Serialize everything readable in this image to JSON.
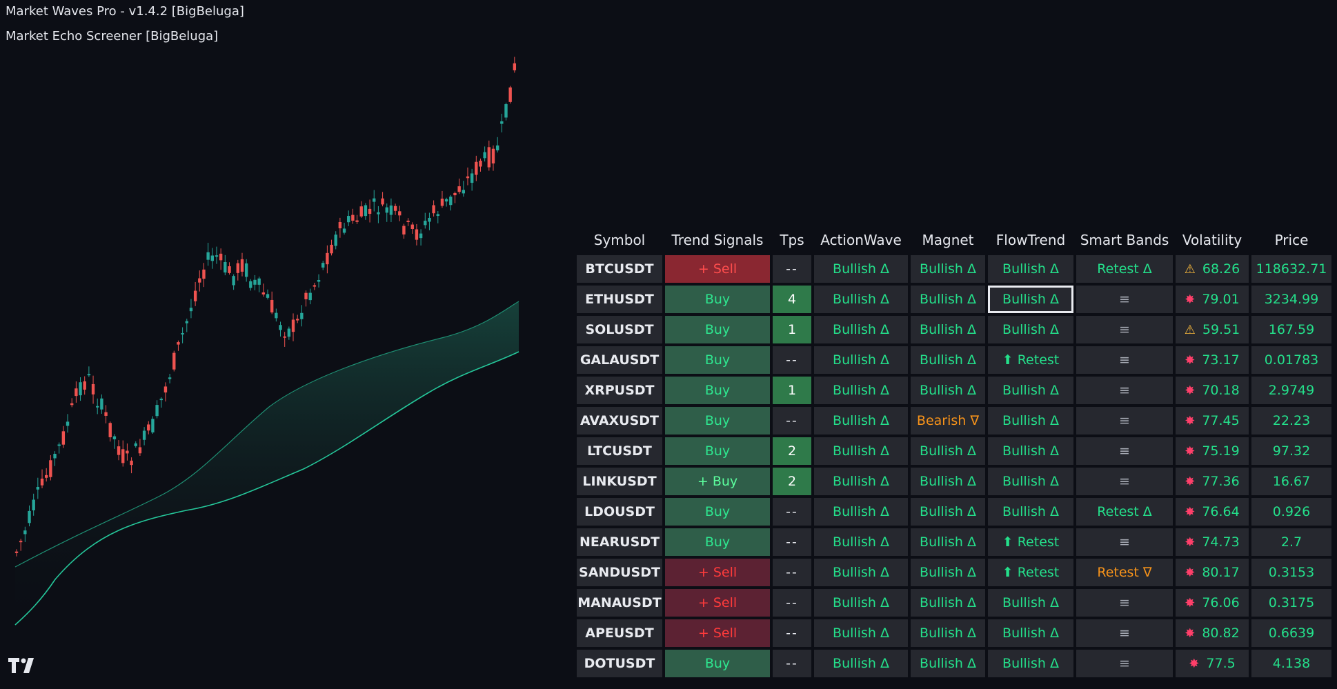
{
  "indicators": {
    "primary": "Market Waves Pro - v1.4.2 [BigBeluga]",
    "secondary": "Market Echo Screener [BigBeluga]"
  },
  "icons": {
    "logo": "tradingview-logo",
    "volatility_warning": "warning-triangle-icon",
    "volatility_high": "explosion-icon"
  },
  "colors": {
    "background": "#0c0e15",
    "bullish_text": "#24e08b",
    "bearish_text": "#f7931a",
    "buy_cell": "#2f5e49",
    "sell_cell": "#5c2233",
    "candle_up": "#26a69a",
    "candle_down": "#ef5350"
  },
  "screener": {
    "headers": [
      "Symbol",
      "Trend Signals",
      "Tps",
      "ActionWave",
      "Magnet",
      "FlowTrend",
      "Smart Bands",
      "Volatility",
      "Price"
    ],
    "rows": [
      {
        "symbol": "BTCUSDT",
        "trend": "+ Sell",
        "tps": "--",
        "actionwave": "Bullish Δ",
        "magnet": "Bullish Δ",
        "flowtrend": "Bullish Δ",
        "smartbands": "Retest Δ",
        "vol_icon": "⚠",
        "volatility": "68.26",
        "price": "118632.71"
      },
      {
        "symbol": "ETHUSDT",
        "trend": "Buy",
        "tps": "4",
        "actionwave": "Bullish Δ",
        "magnet": "Bullish Δ",
        "flowtrend": "Bullish Δ",
        "smartbands": "≡",
        "vol_icon": "✸",
        "volatility": "79.01",
        "price": "3234.99"
      },
      {
        "symbol": "SOLUSDT",
        "trend": "Buy",
        "tps": "1",
        "actionwave": "Bullish Δ",
        "magnet": "Bullish Δ",
        "flowtrend": "Bullish Δ",
        "smartbands": "≡",
        "vol_icon": "⚠",
        "volatility": "59.51",
        "price": "167.59"
      },
      {
        "symbol": "GALAUSDT",
        "trend": "Buy",
        "tps": "--",
        "actionwave": "Bullish Δ",
        "magnet": "Bullish Δ",
        "flowtrend": "⬆ Retest",
        "smartbands": "≡",
        "vol_icon": "✸",
        "volatility": "73.17",
        "price": "0.01783"
      },
      {
        "symbol": "XRPUSDT",
        "trend": "Buy",
        "tps": "1",
        "actionwave": "Bullish Δ",
        "magnet": "Bullish Δ",
        "flowtrend": "Bullish Δ",
        "smartbands": "≡",
        "vol_icon": "✸",
        "volatility": "70.18",
        "price": "2.9749"
      },
      {
        "symbol": "AVAXUSDT",
        "trend": "Buy",
        "tps": "--",
        "actionwave": "Bullish Δ",
        "magnet": "Bearish ∇",
        "flowtrend": "Bullish Δ",
        "smartbands": "≡",
        "vol_icon": "✸",
        "volatility": "77.45",
        "price": "22.23"
      },
      {
        "symbol": "LTCUSDT",
        "trend": "Buy",
        "tps": "2",
        "actionwave": "Bullish Δ",
        "magnet": "Bullish Δ",
        "flowtrend": "Bullish Δ",
        "smartbands": "≡",
        "vol_icon": "✸",
        "volatility": "75.19",
        "price": "97.32"
      },
      {
        "symbol": "LINKUSDT",
        "trend": "+ Buy",
        "tps": "2",
        "actionwave": "Bullish Δ",
        "magnet": "Bullish Δ",
        "flowtrend": "Bullish Δ",
        "smartbands": "≡",
        "vol_icon": "✸",
        "volatility": "77.36",
        "price": "16.67"
      },
      {
        "symbol": "LDOUSDT",
        "trend": "Buy",
        "tps": "--",
        "actionwave": "Bullish Δ",
        "magnet": "Bullish Δ",
        "flowtrend": "Bullish Δ",
        "smartbands": "Retest Δ",
        "vol_icon": "✸",
        "volatility": "76.64",
        "price": "0.926"
      },
      {
        "symbol": "NEARUSDT",
        "trend": "Buy",
        "tps": "--",
        "actionwave": "Bullish Δ",
        "magnet": "Bullish Δ",
        "flowtrend": "⬆ Retest",
        "smartbands": "≡",
        "vol_icon": "✸",
        "volatility": "74.73",
        "price": "2.7"
      },
      {
        "symbol": "SANDUSDT",
        "trend": "+ Sell",
        "tps": "--",
        "actionwave": "Bullish Δ",
        "magnet": "Bullish Δ",
        "flowtrend": "⬆ Retest",
        "smartbands": "Retest ∇",
        "vol_icon": "✸",
        "volatility": "80.17",
        "price": "0.3153"
      },
      {
        "symbol": "MANAUSDT",
        "trend": "+ Sell",
        "tps": "--",
        "actionwave": "Bullish Δ",
        "magnet": "Bullish Δ",
        "flowtrend": "Bullish Δ",
        "smartbands": "≡",
        "vol_icon": "✸",
        "volatility": "76.06",
        "price": "0.3175"
      },
      {
        "symbol": "APEUSDT",
        "trend": "+ Sell",
        "tps": "--",
        "actionwave": "Bullish Δ",
        "magnet": "Bullish Δ",
        "flowtrend": "Bullish Δ",
        "smartbands": "≡",
        "vol_icon": "✸",
        "volatility": "80.82",
        "price": "0.6639"
      },
      {
        "symbol": "DOTUSDT",
        "trend": "Buy",
        "tps": "--",
        "actionwave": "Bullish Δ",
        "magnet": "Bullish Δ",
        "flowtrend": "Bullish Δ",
        "smartbands": "≡",
        "vol_icon": "✸",
        "volatility": "77.5",
        "price": "4.138"
      }
    ]
  }
}
